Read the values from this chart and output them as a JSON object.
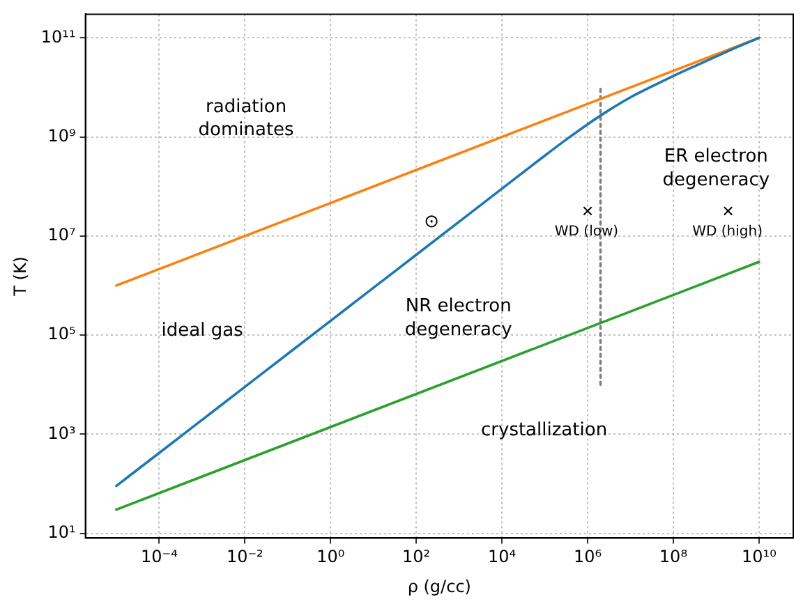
{
  "chart_data": {
    "type": "line",
    "xlabel": "ρ (g/cc)",
    "ylabel": "T (K)",
    "log": "xy",
    "grid": true,
    "legend": false,
    "xlim": [
      1.9e-06,
      63000000000.0
    ],
    "ylim": [
      8,
      300000000000.0
    ],
    "xticks": [
      {
        "value": 0.0001,
        "label": "10⁻⁴"
      },
      {
        "value": 0.01,
        "label": "10⁻²"
      },
      {
        "value": 1,
        "label": "10⁰"
      },
      {
        "value": 100,
        "label": "10²"
      },
      {
        "value": 10000,
        "label": "10⁴"
      },
      {
        "value": 1000000,
        "label": "10⁶"
      },
      {
        "value": 100000000,
        "label": "10⁸"
      },
      {
        "value": 10000000000,
        "label": "10¹⁰"
      }
    ],
    "yticks": [
      {
        "value": 10,
        "label": "10¹"
      },
      {
        "value": 1000,
        "label": "10³"
      },
      {
        "value": 100000,
        "label": "10⁵"
      },
      {
        "value": 10000000,
        "label": "10⁷"
      },
      {
        "value": 1000000000,
        "label": "10⁹"
      },
      {
        "value": 100000000000,
        "label": "10¹¹"
      }
    ],
    "series": [
      {
        "color": "#1f77b4",
        "x": [
          1e-05,
          0.0001,
          0.001,
          0.01,
          0.1,
          1,
          10,
          100,
          1000.0,
          10000.0,
          100000.0,
          320000.0,
          1000000.0,
          3200000.0,
          10000000.0,
          32000000.0,
          100000000.0,
          320000000.0,
          1000000000.0,
          3200000000.0,
          10000000000.0
        ],
        "values": [
          90,
          418,
          1940,
          9000,
          41800,
          194000,
          900000,
          4180000,
          19400000,
          90000000,
          418000000,
          890000000,
          1800000000,
          3500000000,
          6300000000,
          10500000000,
          17000000000,
          27000000000,
          42000000000,
          66000000000,
          100000000000
        ]
      },
      {
        "color": "#ff7f0e",
        "x": [
          1e-05,
          10000000000.0
        ],
        "values": [
          1000000,
          100000000000
        ]
      },
      {
        "color": "#2ca02c",
        "x": [
          1e-05,
          10000000000.0
        ],
        "values": [
          30,
          3000000
        ]
      },
      {
        "color": "#808080",
        "line_style": "dotted",
        "x": [
          2000000.0,
          2000000.0
        ],
        "values": [
          10000,
          10000000000
        ]
      },
      {
        "type": "scatter",
        "color": "#000000",
        "marker": "cross",
        "x": [
          1000000.0,
          1900000000.0
        ],
        "values": [
          32000000,
          32000000
        ]
      }
    ],
    "annotations": [
      "radiation\ndominates",
      "ideal gas",
      "NR electron\ndegeneracy",
      "crystallization",
      "ER electron\ndegeneracy",
      "⊙",
      "WD (low)",
      "WD (high)"
    ]
  }
}
